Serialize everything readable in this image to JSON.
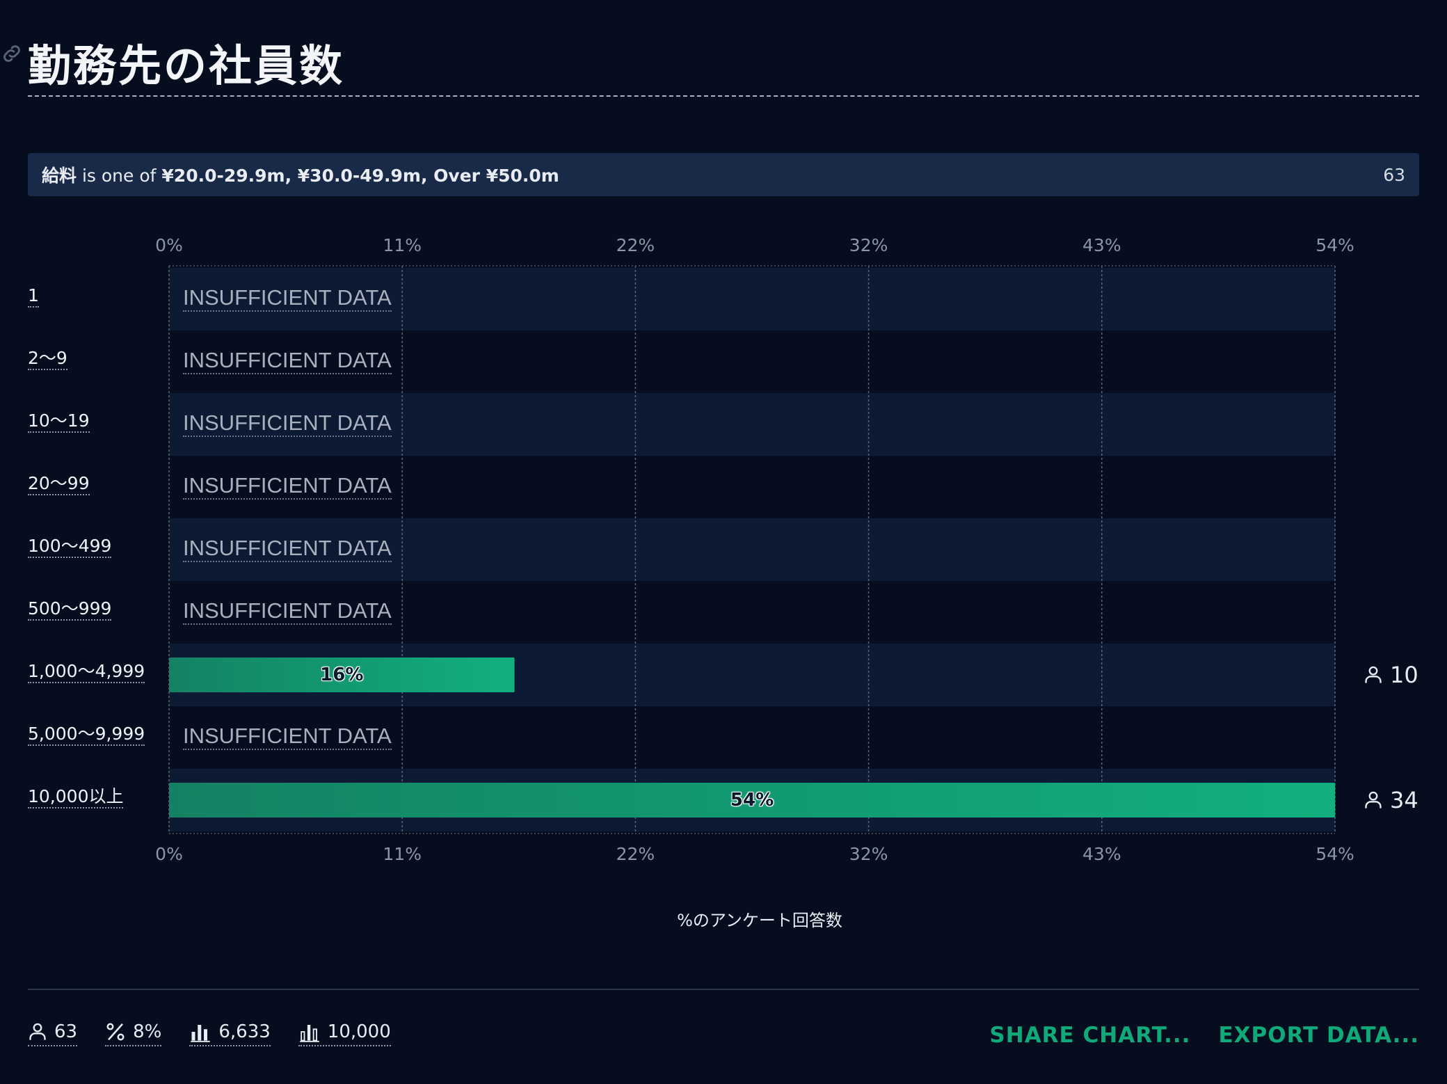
{
  "title": "勤務先の社員数",
  "filter": {
    "field": "給料",
    "operator": "is one of",
    "values": "¥20.0-29.9m, ¥30.0-49.9m, Over ¥50.0m",
    "count": "63"
  },
  "insufficient_label": "INSUFFICIENT DATA",
  "chart_data": {
    "type": "bar",
    "orientation": "horizontal",
    "categories": [
      "1",
      "2〜9",
      "10〜19",
      "20〜99",
      "100〜499",
      "500〜999",
      "1,000〜4,999",
      "5,000〜9,999",
      "10,000以上"
    ],
    "values": [
      null,
      null,
      null,
      null,
      null,
      null,
      16,
      null,
      54
    ],
    "value_labels": [
      "",
      "",
      "",
      "",
      "",
      "",
      "16%",
      "",
      "54%"
    ],
    "respondent_counts": [
      null,
      null,
      null,
      null,
      null,
      null,
      "10",
      null,
      "34"
    ],
    "xticks": [
      "0%",
      "11%",
      "22%",
      "32%",
      "43%",
      "54%"
    ],
    "xtick_values": [
      0,
      10.8,
      21.6,
      32.4,
      43.2,
      54
    ],
    "xlim": [
      0,
      54
    ],
    "xlabel": "%のアンケート回答数",
    "ylabel": "",
    "grid": true,
    "bar_color": "#10a97a",
    "row_band_color": "#0c1a33"
  },
  "footer": {
    "stats": [
      {
        "icon": "user-icon",
        "value": "63"
      },
      {
        "icon": "percent-icon",
        "value": "8%"
      },
      {
        "icon": "bar-chart-icon",
        "value": "6,633"
      },
      {
        "icon": "bar-chart-outline-icon",
        "value": "10,000"
      }
    ],
    "share_label": "SHARE CHART...",
    "export_label": "EXPORT DATA..."
  }
}
